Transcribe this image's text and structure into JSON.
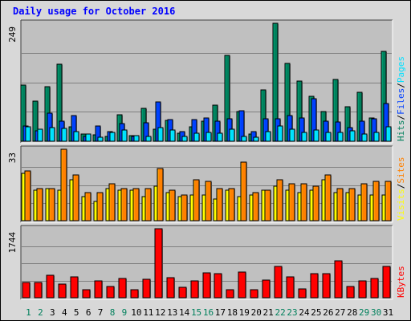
{
  "chart_data": {
    "type": "bar",
    "title": "Daily usage for October 2016",
    "days": [
      "1",
      "2",
      "3",
      "4",
      "5",
      "6",
      "7",
      "8",
      "9",
      "10",
      "11",
      "12",
      "13",
      "14",
      "15",
      "16",
      "17",
      "18",
      "19",
      "20",
      "21",
      "22",
      "23",
      "24",
      "25",
      "26",
      "27",
      "28",
      "29",
      "30",
      "31"
    ],
    "weekend_days": [
      "1",
      "2",
      "8",
      "9",
      "15",
      "16",
      "22",
      "23",
      "29",
      "30"
    ],
    "colors": {
      "hits": "#00805c",
      "files": "#0040ff",
      "pages": "#00e0ff",
      "visits": "#ffff00",
      "sites": "#ff8000",
      "kbytes": "#ff0000",
      "weekday_label": "#000000",
      "weekend_label": "#00805c",
      "plot_bg": "#c0c0c0",
      "frame_bg": "#d8d8d8",
      "title": "#0000ff"
    },
    "panels": [
      {
        "id": "hits",
        "max_label": "249",
        "ymax": 249,
        "legend": [
          {
            "text": "Hits",
            "color": "#00805c"
          },
          {
            "text": "/",
            "color": "#000000"
          },
          {
            "text": "Files",
            "color": "#0040ff"
          },
          {
            "text": "/",
            "color": "#000000"
          },
          {
            "text": "Pages",
            "color": "#00e0ff"
          }
        ],
        "series": [
          {
            "name": "Hits",
            "color": "#00805c",
            "values": [
              118,
              85,
              116,
              163,
              30,
              15,
              14,
              11,
              56,
              12,
              69,
              25,
              44,
              17,
              31,
              43,
              77,
              181,
              62,
              15,
              109,
              249,
              165,
              127,
              95,
              63,
              130,
              73,
              103,
              49,
              190
            ]
          },
          {
            "name": "Files",
            "color": "#0040ff",
            "values": [
              33,
              22,
              59,
              43,
              55,
              11,
              32,
              20,
              37,
              11,
              39,
              83,
              46,
              20,
              45,
              49,
              43,
              48,
              64,
              20,
              47,
              48,
              54,
              49,
              90,
              43,
              41,
              29,
              43,
              47,
              80
            ]
          },
          {
            "name": "Pages",
            "color": "#00e0ff",
            "values": [
              31,
              25,
              29,
              27,
              20,
              16,
              9,
              18,
              24,
              12,
              10,
              28,
              24,
              10,
              17,
              19,
              17,
              25,
              10,
              8,
              20,
              33,
              26,
              18,
              23,
              18,
              19,
              22,
              16,
              19,
              31
            ]
          }
        ]
      },
      {
        "id": "visits",
        "max_label": "33",
        "ymax": 33,
        "legend": [
          {
            "text": "Visits",
            "color": "#ffff00"
          },
          {
            "text": "/",
            "color": "#000000"
          },
          {
            "text": "Sites",
            "color": "#ff8000"
          }
        ],
        "series": [
          {
            "name": "Visits",
            "color": "#ffff00",
            "values": [
              22,
              14,
              15,
              14,
              19,
              11,
              9,
              15,
              14,
              14,
              11,
              16,
              13,
              11,
              12,
              12,
              10,
              14,
              11,
              12,
              14,
              16,
              14,
              13,
              14,
              19,
              13,
              13,
              12,
              12,
              12
            ]
          },
          {
            "name": "Sites",
            "color": "#ff8000",
            "values": [
              23,
              15,
              15,
              33,
              21,
              13,
              13,
              17,
              15,
              15,
              15,
              24,
              14,
              12,
              19,
              18,
              15,
              15,
              27,
              13,
              14,
              19,
              17,
              17,
              16,
              21,
              15,
              15,
              17,
              18,
              18
            ]
          }
        ]
      },
      {
        "id": "kbytes",
        "max_label": "1744",
        "ymax": 1744,
        "legend": [
          {
            "text": "KBytes",
            "color": "#ff0000"
          }
        ],
        "series": [
          {
            "name": "KBytes",
            "color": "#ff0000",
            "values": [
              395,
              395,
              569,
              350,
              528,
              197,
              435,
              284,
              480,
              210,
              470,
              1744,
              500,
              262,
              419,
              625,
              605,
              197,
              655,
              205,
              442,
              798,
              535,
              226,
              613,
              605,
              928,
              279,
              428,
              495,
              791
            ]
          }
        ]
      }
    ]
  }
}
